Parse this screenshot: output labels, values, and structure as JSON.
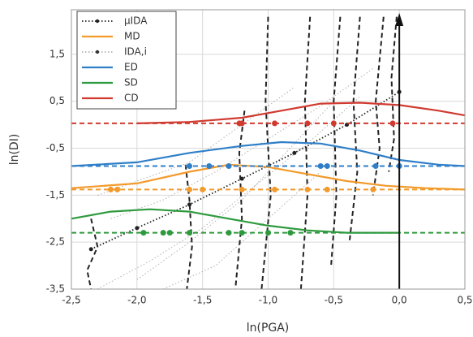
{
  "chart_data": {
    "type": "line",
    "x_label": "ln(PGA)",
    "y_label": "ln(DI)",
    "xlim": [
      -2.5,
      0.5
    ],
    "ylim": [
      -3.5,
      2.45
    ],
    "xticks": [
      {
        "value": -2.5,
        "label": "-2,5"
      },
      {
        "value": -2.0,
        "label": "-2,0"
      },
      {
        "value": -1.5,
        "label": "-1,5"
      },
      {
        "value": -1.0,
        "label": "-1,0"
      },
      {
        "value": -0.5,
        "label": "-0,5"
      },
      {
        "value": 0.0,
        "label": "0,0"
      },
      {
        "value": 0.5,
        "label": "0,5"
      }
    ],
    "yticks": [
      {
        "value": -3.5,
        "label": "-3,5"
      },
      {
        "value": -2.5,
        "label": "-2,5"
      },
      {
        "value": -1.5,
        "label": "-1,5"
      },
      {
        "value": -0.5,
        "label": "-0,5"
      },
      {
        "value": 0.5,
        "label": "0,5"
      },
      {
        "value": 1.5,
        "label": "1,5"
      }
    ],
    "grid": true,
    "legend": "upper left",
    "arrow_x": 0.0,
    "series": [
      {
        "name": "µIDA",
        "color": "#222222",
        "style": "dotted",
        "markers": true,
        "x": [
          -2.35,
          -2.0,
          -1.6,
          -1.2,
          -0.8,
          -0.4,
          0.0
        ],
        "y": [
          -2.65,
          -2.2,
          -1.7,
          -1.15,
          -0.6,
          0.0,
          0.7
        ]
      },
      {
        "name": "MD",
        "color": "#f39a2b",
        "style": "solid",
        "threshold": -1.38,
        "threshold_points": [
          -2.2,
          -2.15,
          -1.6,
          -1.5,
          -1.2,
          -0.95,
          -0.7,
          -0.55,
          -0.2
        ],
        "x": [
          -2.5,
          -2.0,
          -1.6,
          -1.3,
          -1.0,
          -0.7,
          -0.4,
          -0.1,
          0.2,
          0.5
        ],
        "y": [
          -1.35,
          -1.25,
          -1.0,
          -0.85,
          -0.9,
          -1.05,
          -1.2,
          -1.3,
          -1.35,
          -1.38
        ]
      },
      {
        "name": "IDA,i",
        "color": "#b0b0b0",
        "style": "dotted",
        "x": [
          -2.3,
          -1.9,
          -1.5,
          -1.1,
          -0.7,
          -0.3,
          null,
          -2.0,
          -1.6,
          -1.2,
          -0.9,
          -0.5,
          null,
          -2.2,
          -1.8,
          -1.4,
          -1.0,
          -0.6,
          -0.2,
          null,
          -1.8,
          -1.4,
          -1.0,
          -0.6,
          null,
          -2.3,
          -2.0,
          -1.6,
          -1.2,
          -0.8
        ],
        "y": [
          -3.5,
          -2.9,
          -2.2,
          -1.3,
          -0.4,
          0.6,
          null,
          -3.3,
          -2.5,
          -1.6,
          -0.7,
          0.5,
          null,
          -2.0,
          -1.6,
          -1.0,
          -0.3,
          0.4,
          1.2,
          null,
          -3.5,
          -3.0,
          -2.0,
          -1.0,
          null,
          -1.5,
          -1.2,
          -0.8,
          0.0,
          0.8
        ]
      },
      {
        "name": "ED",
        "color": "#2f7fc8",
        "style": "solid",
        "threshold": -0.88,
        "threshold_points": [
          -1.6,
          -1.45,
          -1.3,
          -0.6,
          -0.55,
          -0.18,
          0.0
        ],
        "x": [
          -2.5,
          -2.0,
          -1.6,
          -1.2,
          -0.9,
          -0.6,
          -0.3,
          0.0,
          0.3,
          0.5
        ],
        "y": [
          -0.88,
          -0.8,
          -0.6,
          -0.45,
          -0.37,
          -0.4,
          -0.55,
          -0.75,
          -0.85,
          -0.88
        ]
      },
      {
        "name": "SD",
        "color": "#2e9a3e",
        "style": "solid",
        "threshold": -2.3,
        "threshold_points": [
          -1.95,
          -1.8,
          -1.75,
          -1.6,
          -1.3,
          -1.2,
          -1.0,
          -0.83
        ],
        "x": [
          -2.5,
          -2.2,
          -1.9,
          -1.6,
          -1.3,
          -1.0,
          -0.7,
          -0.4,
          0.0
        ],
        "y": [
          -2.0,
          -1.85,
          -1.8,
          -1.85,
          -2.0,
          -2.15,
          -2.25,
          -2.3,
          -2.3
        ]
      },
      {
        "name": "CD",
        "color": "#d03a2f",
        "style": "solid",
        "threshold": 0.03,
        "threshold_points": [
          -1.22,
          -1.2,
          -0.95,
          -0.7,
          -0.5,
          -0.05
        ],
        "x": [
          -2.0,
          -1.6,
          -1.2,
          -0.9,
          -0.6,
          -0.3,
          0.0,
          0.3,
          0.5
        ],
        "y": [
          0.03,
          0.06,
          0.15,
          0.3,
          0.45,
          0.47,
          0.42,
          0.3,
          0.2
        ]
      }
    ],
    "stripes": {
      "color": "#222222",
      "x": [
        -2.35,
        -2.3,
        -2.38,
        -2.35,
        null,
        -1.63,
        -1.6,
        -1.58,
        -1.62,
        null,
        -1.18,
        -1.22,
        -1.2,
        -1.25,
        null,
        -1.0,
        -1.02,
        -0.98,
        -1.05,
        null,
        -0.68,
        -0.72,
        -0.7,
        -0.75,
        null,
        -0.45,
        -0.5,
        -0.48,
        -0.52,
        null,
        -0.3,
        -0.35,
        -0.32,
        -0.38,
        null,
        -0.12,
        -0.18,
        -0.15,
        -0.2,
        null,
        -0.02,
        -0.06,
        -0.04,
        -0.08
      ],
      "y": [
        -2.0,
        -2.6,
        -3.1,
        -3.5,
        null,
        -0.85,
        -1.6,
        -2.6,
        -3.5,
        null,
        0.3,
        -0.6,
        -2.0,
        -3.5,
        null,
        2.3,
        0.5,
        -1.5,
        -3.5,
        null,
        2.3,
        0.5,
        -1.5,
        -3.5,
        null,
        2.3,
        0.5,
        -1.5,
        -3.0,
        null,
        2.3,
        0.5,
        -1.0,
        -2.5,
        null,
        2.3,
        0.5,
        -0.5,
        -1.5,
        null,
        2.3,
        1.0,
        -0.3,
        -1.0
      ]
    }
  }
}
